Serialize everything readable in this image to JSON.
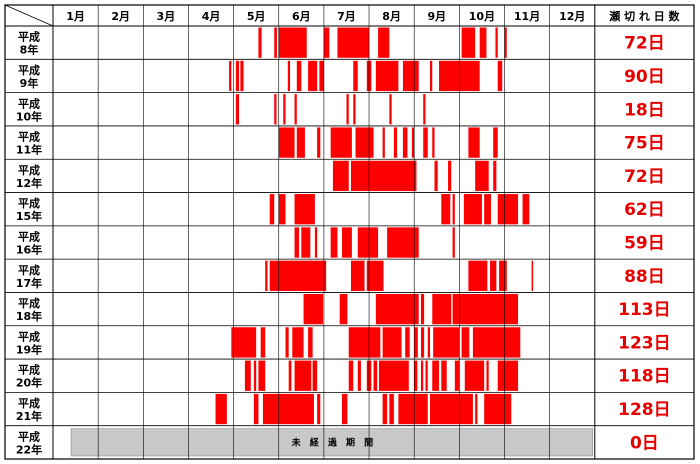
{
  "chart_data": {
    "type": "timeline",
    "header": {
      "months": [
        "1月",
        "2月",
        "3月",
        "4月",
        "5月",
        "6月",
        "7月",
        "8月",
        "9月",
        "10月",
        "11月",
        "12月"
      ],
      "days_label": "瀬 切 れ 日 数"
    },
    "bar_color": "#ff0000",
    "rows": [
      {
        "year_line1": "平成",
        "year_line2": "8年",
        "days": "72日",
        "periods": [
          [
            5.55,
            5.62
          ],
          [
            5.9,
            5.96
          ],
          [
            6.0,
            6.62
          ],
          [
            7.0,
            7.12
          ],
          [
            7.3,
            8.0
          ],
          [
            8.2,
            8.45
          ],
          [
            10.05,
            10.35
          ],
          [
            10.45,
            10.6
          ],
          [
            10.8,
            10.85
          ],
          [
            11.0,
            11.05
          ]
        ]
      },
      {
        "year_line1": "平成",
        "year_line2": "9年",
        "days": "90日",
        "periods": [
          [
            4.9,
            4.95
          ],
          [
            5.05,
            5.12
          ],
          [
            5.15,
            5.22
          ],
          [
            6.2,
            6.25
          ],
          [
            6.4,
            6.5
          ],
          [
            6.65,
            6.85
          ],
          [
            6.9,
            7.0
          ],
          [
            7.65,
            7.75
          ],
          [
            7.95,
            8.05
          ],
          [
            8.15,
            8.65
          ],
          [
            8.75,
            9.1
          ],
          [
            9.35,
            9.4
          ],
          [
            9.55,
            10.45
          ],
          [
            10.85,
            10.95
          ]
        ]
      },
      {
        "year_line1": "平成",
        "year_line2": "10年",
        "days": "18日",
        "periods": [
          [
            5.05,
            5.12
          ],
          [
            5.9,
            5.95
          ],
          [
            6.1,
            6.15
          ],
          [
            6.35,
            6.4
          ],
          [
            7.5,
            7.55
          ],
          [
            7.65,
            7.7
          ],
          [
            8.45,
            8.5
          ],
          [
            9.2,
            9.25
          ]
        ]
      },
      {
        "year_line1": "平成",
        "year_line2": "11年",
        "days": "75日",
        "periods": [
          [
            6.0,
            6.35
          ],
          [
            6.4,
            6.58
          ],
          [
            6.85,
            6.92
          ],
          [
            7.15,
            7.62
          ],
          [
            7.7,
            8.1
          ],
          [
            8.3,
            8.35
          ],
          [
            8.55,
            8.62
          ],
          [
            8.75,
            8.85
          ],
          [
            8.95,
            9.0
          ],
          [
            9.2,
            9.3
          ],
          [
            9.4,
            9.45
          ],
          [
            10.2,
            10.45
          ],
          [
            10.75,
            10.85
          ]
        ]
      },
      {
        "year_line1": "平成",
        "year_line2": "12年",
        "days": "72日",
        "periods": [
          [
            7.2,
            7.55
          ],
          [
            7.6,
            9.05
          ],
          [
            9.45,
            9.52
          ],
          [
            9.75,
            9.82
          ],
          [
            10.35,
            10.65
          ],
          [
            10.75,
            10.82
          ]
        ]
      },
      {
        "year_line1": "平成",
        "year_line2": "15年",
        "days": "62日",
        "periods": [
          [
            5.8,
            5.9
          ],
          [
            6.0,
            6.15
          ],
          [
            6.35,
            6.8
          ],
          [
            9.6,
            9.8
          ],
          [
            9.85,
            9.9
          ],
          [
            10.1,
            10.5
          ],
          [
            10.55,
            10.7
          ],
          [
            10.85,
            11.3
          ],
          [
            11.4,
            11.55
          ]
        ]
      },
      {
        "year_line1": "平成",
        "year_line2": "16年",
        "days": "59日",
        "periods": [
          [
            6.35,
            6.45
          ],
          [
            6.5,
            6.7
          ],
          [
            6.8,
            6.85
          ],
          [
            7.15,
            7.3
          ],
          [
            7.4,
            7.62
          ],
          [
            7.75,
            8.2
          ],
          [
            8.4,
            9.1
          ],
          [
            9.85,
            9.9
          ]
        ]
      },
      {
        "year_line1": "平成",
        "year_line2": "17年",
        "days": "88日",
        "periods": [
          [
            5.7,
            5.75
          ],
          [
            5.8,
            7.05
          ],
          [
            7.6,
            7.9
          ],
          [
            7.95,
            8.32
          ],
          [
            10.2,
            10.62
          ],
          [
            10.68,
            10.82
          ],
          [
            10.88,
            11.05
          ],
          [
            11.6,
            11.62
          ]
        ]
      },
      {
        "year_line1": "平成",
        "year_line2": "18年",
        "days": "113日",
        "periods": [
          [
            6.55,
            6.98
          ],
          [
            7.35,
            7.52
          ],
          [
            8.15,
            9.1
          ],
          [
            9.15,
            9.22
          ],
          [
            9.4,
            9.82
          ],
          [
            9.85,
            11.3
          ]
        ]
      },
      {
        "year_line1": "平成",
        "year_line2": "19年",
        "days": "123日",
        "periods": [
          [
            4.95,
            5.5
          ],
          [
            5.6,
            5.7
          ],
          [
            6.15,
            6.22
          ],
          [
            6.3,
            6.55
          ],
          [
            6.65,
            6.75
          ],
          [
            7.55,
            8.25
          ],
          [
            8.3,
            8.72
          ],
          [
            8.8,
            8.9
          ],
          [
            9.0,
            9.08
          ],
          [
            9.15,
            9.22
          ],
          [
            9.3,
            9.35
          ],
          [
            9.42,
            10.0
          ],
          [
            10.05,
            10.22
          ],
          [
            10.3,
            11.35
          ]
        ]
      },
      {
        "year_line1": "平成",
        "year_line2": "20年",
        "days": "118日",
        "periods": [
          [
            5.25,
            5.38
          ],
          [
            5.45,
            5.5
          ],
          [
            5.55,
            5.7
          ],
          [
            6.22,
            6.28
          ],
          [
            6.35,
            6.72
          ],
          [
            6.75,
            6.85
          ],
          [
            7.55,
            7.65
          ],
          [
            7.75,
            7.82
          ],
          [
            7.95,
            8.05
          ],
          [
            8.1,
            8.18
          ],
          [
            8.22,
            8.88
          ],
          [
            9.0,
            9.07
          ],
          [
            9.15,
            9.2
          ],
          [
            9.25,
            9.3
          ],
          [
            9.4,
            9.55
          ],
          [
            9.6,
            9.72
          ],
          [
            9.9,
            10.0
          ],
          [
            10.12,
            10.55
          ],
          [
            10.6,
            10.65
          ],
          [
            10.85,
            11.3
          ]
        ]
      },
      {
        "year_line1": "平成",
        "year_line2": "21年",
        "days": "128日",
        "periods": [
          [
            4.6,
            4.85
          ],
          [
            5.45,
            5.55
          ],
          [
            5.65,
            6.78
          ],
          [
            6.85,
            6.92
          ],
          [
            7.4,
            7.52
          ],
          [
            8.3,
            8.4
          ],
          [
            8.45,
            8.55
          ],
          [
            8.65,
            9.3
          ],
          [
            9.35,
            10.3
          ],
          [
            10.35,
            10.4
          ],
          [
            10.55,
            11.15
          ]
        ]
      },
      {
        "year_line1": "平成",
        "year_line2": "22年",
        "days": "0日",
        "periods": [],
        "note": "未 経 過 期 間"
      }
    ]
  }
}
